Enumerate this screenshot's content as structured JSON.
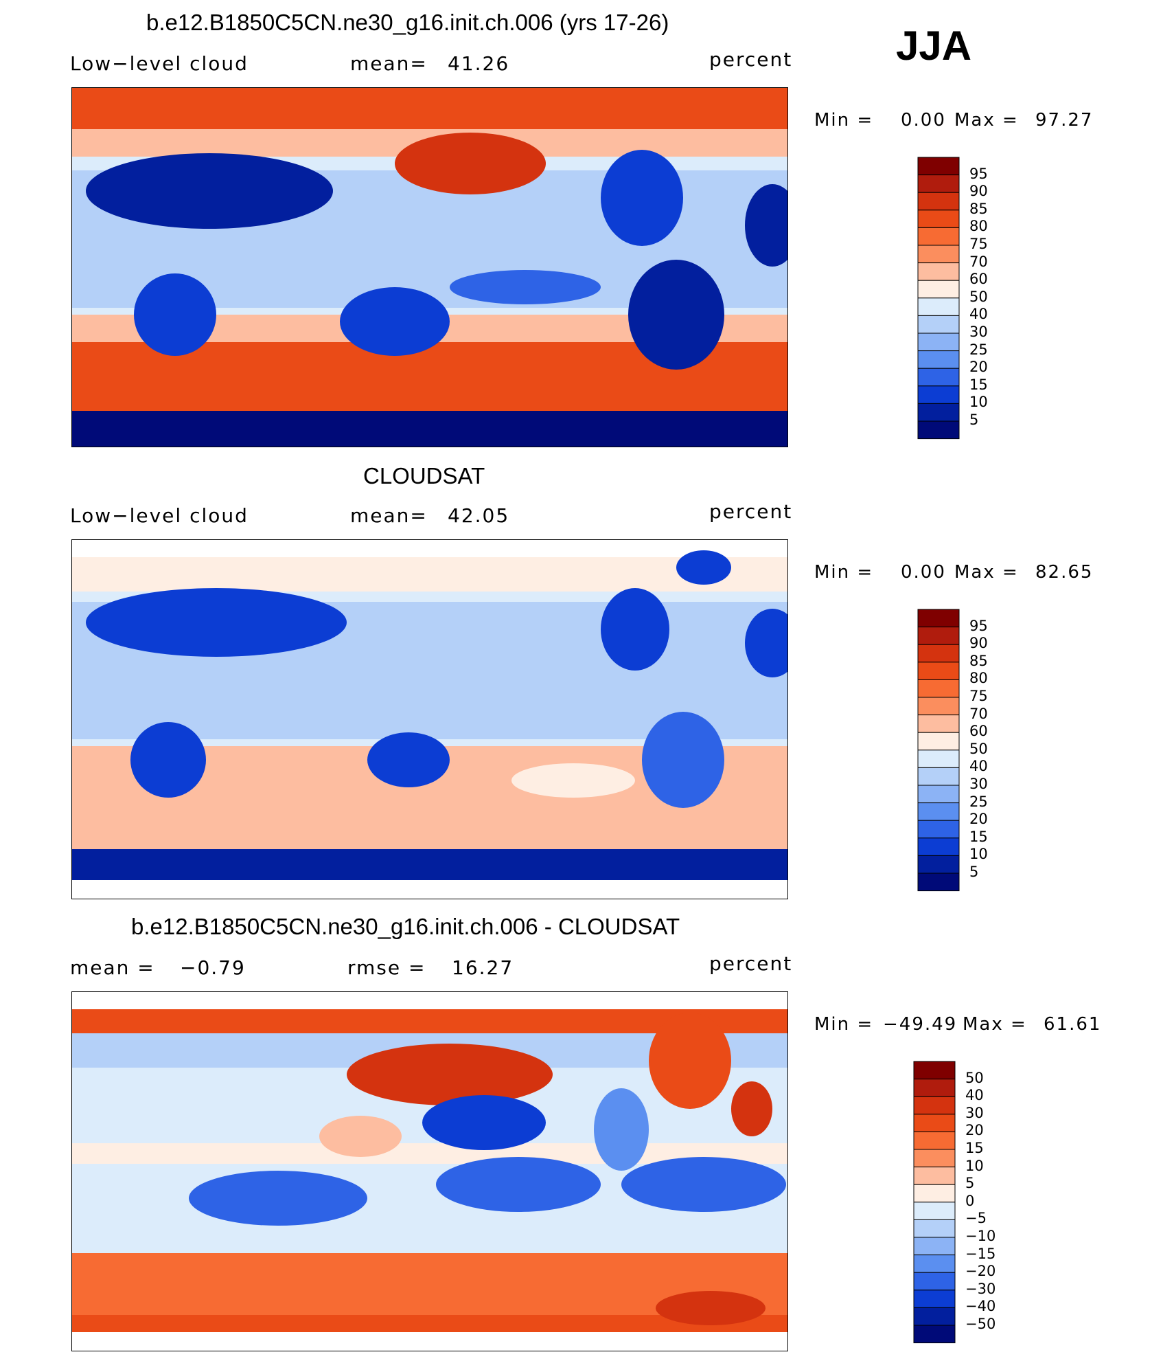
{
  "season": "JJA",
  "units": "percent",
  "panels": [
    {
      "id": "model",
      "title": "b.e12.B1850C5CN.ne30_g16.init.ch.006 (yrs 17-26)",
      "left_label": "Low−level cloud",
      "stat_label": "mean=",
      "stat_value": "41.26",
      "right_label": "percent",
      "min_label": "Min =",
      "min_value": "0.00",
      "max_label": "Max =",
      "max_value": "97.27",
      "colorbar_labels": [
        "95",
        "90",
        "85",
        "80",
        "75",
        "70",
        "60",
        "50",
        "40",
        "30",
        "25",
        "20",
        "15",
        "10",
        "5"
      ]
    },
    {
      "id": "obs",
      "title": "CLOUDSAT",
      "left_label": "Low−level cloud",
      "stat_label": "mean=",
      "stat_value": "42.05",
      "right_label": "percent",
      "min_label": "Min =",
      "min_value": "0.00",
      "max_label": "Max =",
      "max_value": "82.65",
      "colorbar_labels": [
        "95",
        "90",
        "85",
        "80",
        "75",
        "70",
        "60",
        "50",
        "40",
        "30",
        "25",
        "20",
        "15",
        "10",
        "5"
      ]
    },
    {
      "id": "diff",
      "title": "b.e12.B1850C5CN.ne30_g16.init.ch.006 - CLOUDSAT",
      "left_label": "mean =",
      "left_value": "−0.79",
      "stat_label": "rmse =",
      "stat_value": "16.27",
      "right_label": "percent",
      "min_label": "Min =",
      "min_value": "−49.49",
      "max_label": "Max =",
      "max_value": "61.61",
      "colorbar_labels": [
        "50",
        "40",
        "30",
        "20",
        "15",
        "10",
        "5",
        "0",
        "−5",
        "−10",
        "−15",
        "−20",
        "−30",
        "−40",
        "−50"
      ]
    }
  ],
  "colors": {
    "scale": [
      "#7f0000",
      "#b01c0d",
      "#d4330f",
      "#ea4b17",
      "#f76b33",
      "#fb8e5e",
      "#fdbda0",
      "#feeee3",
      "#dcecfb",
      "#b4d0f8",
      "#8cb3f5",
      "#5b8ff0",
      "#2e63e6",
      "#0c3dd3",
      "#021f9e",
      "#000a78"
    ]
  }
}
